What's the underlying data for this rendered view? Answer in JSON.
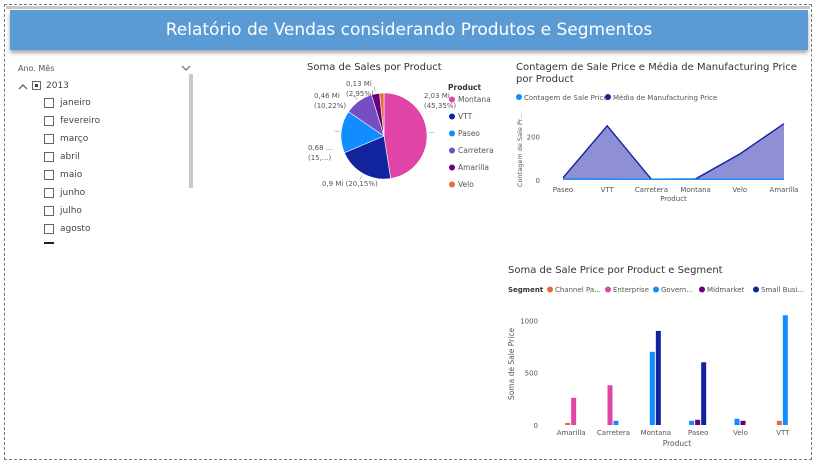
{
  "header": {
    "title": "Relatório de Vendas considerando Produtos e Segmentos"
  },
  "slicer": {
    "label": "Ano. Mês",
    "year": "2013",
    "months": [
      "janeiro",
      "fevereiro",
      "março",
      "abril",
      "maio",
      "junho",
      "julho",
      "agosto"
    ]
  },
  "pie": {
    "title": "Soma de Sales por Product",
    "legend_title": "Product",
    "labels": {
      "montana": "2,03 Mi\n(45,35%)",
      "vtt": "0,9 Mi (20,15%)",
      "paseo": "0,68 ...\n(15,...)",
      "carretera": "0,46 Mi\n(10,22%)",
      "amarilla": "0,13 Mi\n(2,95%)"
    }
  },
  "area": {
    "title": "Contagem de Sale Price e Média de Manufacturing Price por Product",
    "legend": [
      "Contagem de Sale Price",
      "Média de Manufacturing Price"
    ],
    "ylabel": "Contagem de Sale Pr...",
    "xlabel": "Product"
  },
  "bars": {
    "title": "Soma de Sale Price por Product e Segment",
    "legend_title": "Segment",
    "legend": [
      "Channel Pa...",
      "Enterprise",
      "Govern...",
      "Midmarket",
      "Small Busi..."
    ],
    "ylabel": "Soma de Sale Price",
    "xlabel": "Product"
  },
  "colors": {
    "banner": "#5b9bd5",
    "montana": "#e044a7",
    "vtt": "#12239e",
    "paseo": "#118dff",
    "carretera": "#744ec2",
    "amarilla": "#6b007b",
    "velo": "#e66c37",
    "area_fill": "#8f8fd6"
  },
  "chart_data": [
    {
      "type": "pie",
      "title": "Soma de Sales por Product",
      "legend_title": "Product",
      "categories": [
        "Montana",
        "VTT",
        "Paseo",
        "Carretera",
        "Amarilla",
        "Velo"
      ],
      "values": [
        2.03,
        0.9,
        0.68,
        0.46,
        0.13,
        0.07
      ],
      "legend_placement": "right"
    },
    {
      "type": "area",
      "title": "Contagem de Sale Price e Média de Manufacturing Price por Product",
      "categories": [
        "Paseo",
        "VTT",
        "Carretera",
        "Montana",
        "Velo",
        "Amarilla"
      ],
      "series": [
        {
          "name": "Contagem de Sale Price",
          "values": [
            5,
            4,
            3,
            3,
            3,
            3
          ]
        },
        {
          "name": "Média de Manufacturing Price",
          "values": [
            10,
            250,
            3,
            5,
            120,
            260
          ]
        }
      ],
      "xlabel": "Product",
      "ylabel": "Contagem de Sale Pr...",
      "yticks": [
        0,
        200
      ],
      "ylim": [
        0,
        300
      ],
      "legend_placement": "top"
    },
    {
      "type": "bar",
      "title": "Soma de Sale Price por Product e Segment",
      "categories": [
        "Amarilla",
        "Carretera",
        "Montana",
        "Paseo",
        "Velo",
        "VTT"
      ],
      "series": [
        {
          "name": "Channel Pa...",
          "values": [
            20,
            0,
            0,
            0,
            0,
            40
          ]
        },
        {
          "name": "Enterprise",
          "values": [
            260,
            380,
            0,
            0,
            0,
            0
          ]
        },
        {
          "name": "Govern...",
          "values": [
            0,
            40,
            700,
            40,
            60,
            1050
          ]
        },
        {
          "name": "Midmarket",
          "values": [
            0,
            0,
            0,
            50,
            40,
            0
          ]
        },
        {
          "name": "Small Busi...",
          "values": [
            0,
            0,
            900,
            600,
            0,
            0
          ]
        }
      ],
      "xlabel": "Product",
      "ylabel": "Soma de Sale Price",
      "yticks": [
        0,
        500,
        1000
      ],
      "ylim": [
        0,
        1100
      ],
      "legend_placement": "top"
    }
  ]
}
